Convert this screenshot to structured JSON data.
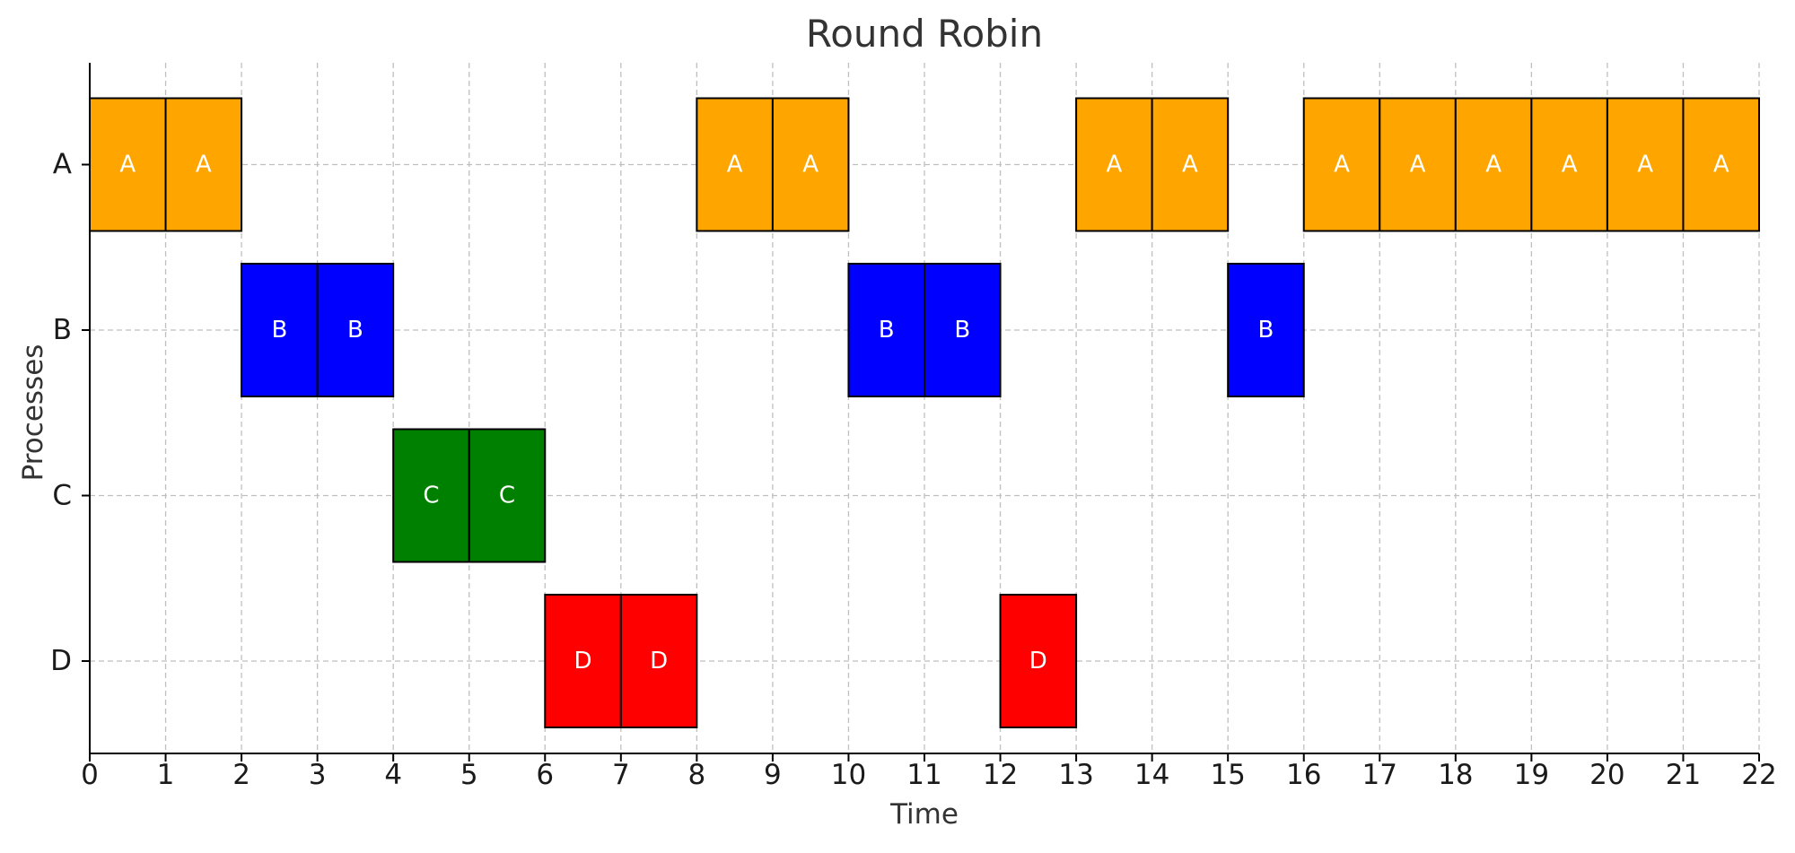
{
  "chart_data": {
    "type": "gantt",
    "title": "Round Robin",
    "xlabel": "Time",
    "ylabel": "Processes",
    "xlim": [
      0,
      22
    ],
    "xticks": [
      0,
      1,
      2,
      3,
      4,
      5,
      6,
      7,
      8,
      9,
      10,
      11,
      12,
      13,
      14,
      15,
      16,
      17,
      18,
      19,
      20,
      21,
      22
    ],
    "processes": [
      "A",
      "B",
      "C",
      "D"
    ],
    "colors": {
      "A": "#ffa500",
      "B": "#0000ff",
      "C": "#008000",
      "D": "#ff0000"
    },
    "grid": true,
    "slices": [
      {
        "process": "A",
        "start": 0,
        "end": 1
      },
      {
        "process": "A",
        "start": 1,
        "end": 2
      },
      {
        "process": "B",
        "start": 2,
        "end": 3
      },
      {
        "process": "B",
        "start": 3,
        "end": 4
      },
      {
        "process": "C",
        "start": 4,
        "end": 5
      },
      {
        "process": "C",
        "start": 5,
        "end": 6
      },
      {
        "process": "D",
        "start": 6,
        "end": 7
      },
      {
        "process": "D",
        "start": 7,
        "end": 8
      },
      {
        "process": "A",
        "start": 8,
        "end": 9
      },
      {
        "process": "A",
        "start": 9,
        "end": 10
      },
      {
        "process": "B",
        "start": 10,
        "end": 11
      },
      {
        "process": "B",
        "start": 11,
        "end": 12
      },
      {
        "process": "D",
        "start": 12,
        "end": 13
      },
      {
        "process": "A",
        "start": 13,
        "end": 14
      },
      {
        "process": "A",
        "start": 14,
        "end": 15
      },
      {
        "process": "B",
        "start": 15,
        "end": 16
      },
      {
        "process": "A",
        "start": 16,
        "end": 17
      },
      {
        "process": "A",
        "start": 17,
        "end": 18
      },
      {
        "process": "A",
        "start": 18,
        "end": 19
      },
      {
        "process": "A",
        "start": 19,
        "end": 20
      },
      {
        "process": "A",
        "start": 20,
        "end": 21
      },
      {
        "process": "A",
        "start": 21,
        "end": 22
      }
    ]
  }
}
